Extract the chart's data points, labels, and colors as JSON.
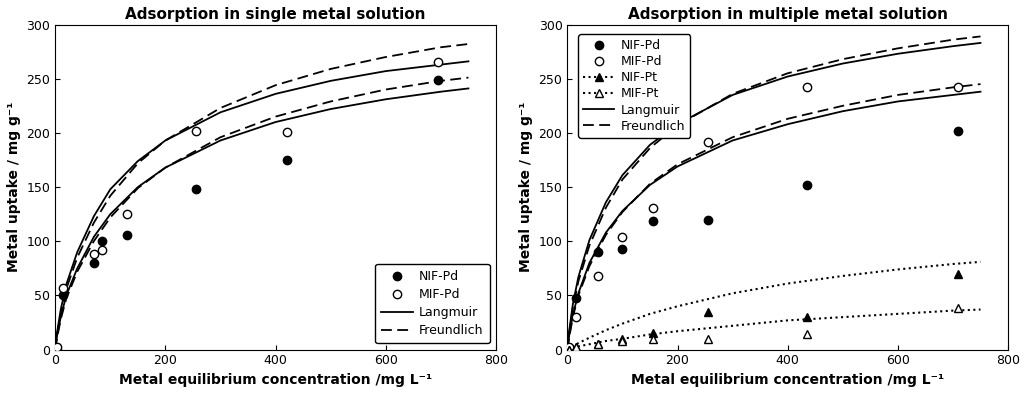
{
  "left": {
    "title": "Adsorption in single metal solution",
    "xlabel": "Metal equilibrium concentration /mg L⁻¹",
    "ylabel": "Metal uptake / mg g⁻¹",
    "xlim": [
      0,
      800
    ],
    "ylim": [
      0,
      300
    ],
    "xticks": [
      0,
      200,
      400,
      600,
      800
    ],
    "yticks": [
      0,
      50,
      100,
      150,
      200,
      250,
      300
    ],
    "nif_pd_x": [
      3,
      15,
      70,
      85,
      130,
      255,
      420,
      695
    ],
    "nif_pd_y": [
      0,
      50,
      80,
      100,
      106,
      148,
      175,
      249
    ],
    "mif_pd_x": [
      3,
      15,
      70,
      85,
      130,
      255,
      420,
      695
    ],
    "mif_pd_y": [
      2,
      57,
      88,
      92,
      125,
      202,
      201,
      265
    ],
    "langmuir_nif_x": [
      0,
      3,
      10,
      20,
      40,
      70,
      100,
      150,
      200,
      300,
      400,
      500,
      600,
      700,
      750
    ],
    "langmuir_nif_y": [
      0,
      12,
      30,
      50,
      75,
      104,
      125,
      150,
      168,
      193,
      210,
      222,
      231,
      238,
      241
    ],
    "langmuir_mif_x": [
      0,
      3,
      10,
      20,
      40,
      70,
      100,
      150,
      200,
      300,
      400,
      500,
      600,
      700,
      750
    ],
    "langmuir_mif_y": [
      0,
      15,
      37,
      60,
      90,
      123,
      148,
      174,
      193,
      219,
      236,
      248,
      257,
      263,
      266
    ],
    "freundlich_nif_x": [
      0,
      3,
      10,
      20,
      40,
      70,
      100,
      150,
      200,
      300,
      400,
      500,
      600,
      700,
      750
    ],
    "freundlich_nif_y": [
      0,
      10,
      28,
      47,
      72,
      100,
      122,
      149,
      168,
      196,
      215,
      229,
      240,
      248,
      251
    ],
    "freundlich_mif_x": [
      0,
      3,
      10,
      20,
      40,
      70,
      100,
      150,
      200,
      300,
      400,
      500,
      600,
      700,
      750
    ],
    "freundlich_mif_y": [
      0,
      13,
      33,
      56,
      85,
      117,
      142,
      172,
      193,
      223,
      244,
      259,
      270,
      279,
      282
    ]
  },
  "right": {
    "title": "Adsorption in multiple metal solution",
    "xlabel": "Metal equilibrium concentration /mg L⁻¹",
    "ylabel": "Metal uptake / mg g⁻¹",
    "xlim": [
      0,
      800
    ],
    "ylim": [
      0,
      300
    ],
    "xticks": [
      0,
      200,
      400,
      600,
      800
    ],
    "yticks": [
      0,
      50,
      100,
      150,
      200,
      250,
      300
    ],
    "nif_pd_x": [
      3,
      15,
      55,
      100,
      155,
      255,
      435,
      710
    ],
    "nif_pd_y": [
      0,
      48,
      90,
      93,
      119,
      120,
      152,
      202
    ],
    "mif_pd_x": [
      3,
      15,
      55,
      100,
      155,
      255,
      435,
      710
    ],
    "mif_pd_y": [
      2,
      30,
      68,
      104,
      131,
      192,
      242,
      242
    ],
    "nif_pt_x": [
      3,
      15,
      55,
      100,
      155,
      255,
      435,
      710
    ],
    "nif_pt_y": [
      0,
      2,
      5,
      10,
      15,
      35,
      30,
      70
    ],
    "mif_pt_x": [
      3,
      15,
      55,
      100,
      155,
      255,
      435,
      710
    ],
    "mif_pt_y": [
      0,
      2,
      5,
      8,
      10,
      10,
      14,
      38
    ],
    "langmuir_nif_x": [
      0,
      3,
      10,
      20,
      40,
      70,
      100,
      150,
      200,
      300,
      400,
      500,
      600,
      700,
      750
    ],
    "langmuir_nif_y": [
      0,
      12,
      32,
      52,
      80,
      108,
      128,
      152,
      169,
      193,
      208,
      220,
      229,
      235,
      238
    ],
    "langmuir_mif_x": [
      0,
      3,
      10,
      20,
      40,
      70,
      100,
      150,
      200,
      300,
      400,
      500,
      600,
      700,
      750
    ],
    "langmuir_mif_y": [
      0,
      16,
      42,
      67,
      101,
      136,
      161,
      189,
      208,
      235,
      252,
      264,
      273,
      280,
      283
    ],
    "freundlich_nif_x": [
      0,
      3,
      10,
      20,
      40,
      70,
      100,
      150,
      200,
      300,
      400,
      500,
      600,
      700,
      750
    ],
    "freundlich_nif_y": [
      0,
      10,
      30,
      50,
      77,
      106,
      127,
      153,
      171,
      196,
      213,
      225,
      235,
      242,
      245
    ],
    "freundlich_mif_x": [
      0,
      3,
      10,
      20,
      40,
      70,
      100,
      150,
      200,
      300,
      400,
      500,
      600,
      700,
      750
    ],
    "freundlich_mif_y": [
      0,
      14,
      39,
      63,
      96,
      131,
      157,
      186,
      207,
      236,
      255,
      268,
      278,
      286,
      289
    ],
    "pt_dotted_nif_x": [
      0,
      3,
      10,
      20,
      40,
      70,
      100,
      150,
      200,
      300,
      400,
      500,
      600,
      700,
      750
    ],
    "pt_dotted_nif_y": [
      0,
      1,
      3,
      6,
      11,
      18,
      24,
      33,
      40,
      52,
      61,
      68,
      74,
      79,
      81
    ],
    "pt_dotted_mif_x": [
      0,
      3,
      10,
      20,
      40,
      70,
      100,
      150,
      200,
      300,
      400,
      500,
      600,
      700,
      750
    ],
    "pt_dotted_mif_y": [
      0,
      0,
      1,
      3,
      5,
      8,
      10,
      14,
      17,
      22,
      27,
      30,
      33,
      36,
      37
    ]
  },
  "text_color": "#000000",
  "bg_color": "#ffffff",
  "title_fontsize": 11,
  "label_fontsize": 10,
  "tick_fontsize": 9,
  "legend_fontsize": 9
}
